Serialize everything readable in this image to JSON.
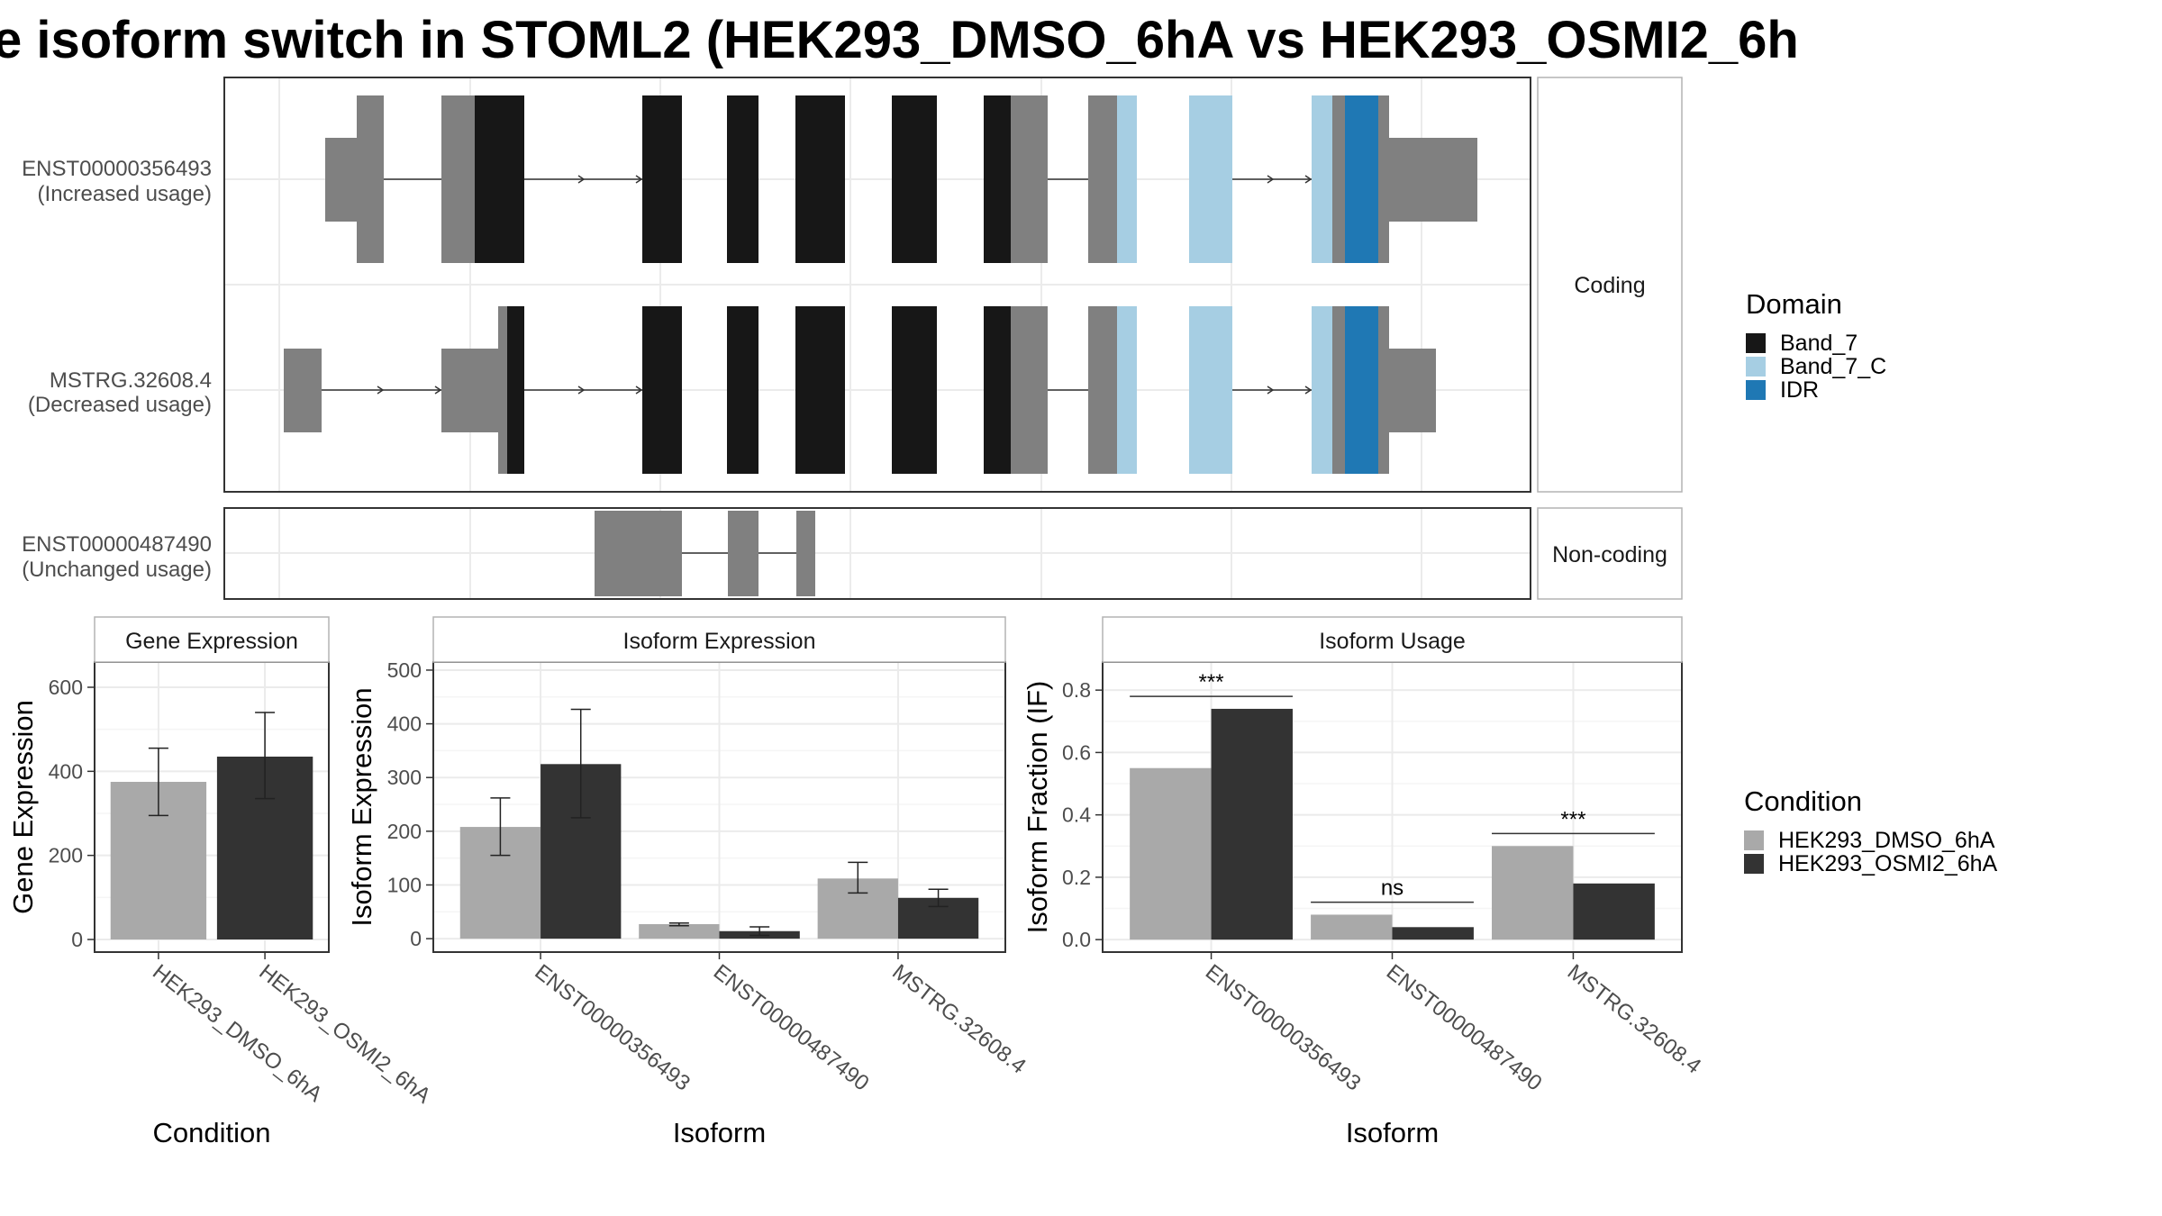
{
  "title": "e isoform switch in STOML2 (HEK293_DMSO_6hA vs HEK293_OSMI2_6h",
  "colors": {
    "utr": "#808080",
    "band7": "#171717",
    "band7c": "#a6cee3",
    "idr": "#1f78b4",
    "dmso": "#a9a9a9",
    "osmi2": "#333333",
    "grid": "#ebebeb",
    "panel_border": "#333333",
    "strip_border": "#b3b3b3"
  },
  "structure": {
    "transcripts": [
      {
        "id": "ENST00000356493",
        "usage": "(Increased usage)"
      },
      {
        "id": "MSTRG.32608.4",
        "usage": "(Decreased usage)"
      },
      {
        "id": "ENST00000487490",
        "usage": "(Unchanged usage)"
      }
    ],
    "strips": {
      "coding": "Coding",
      "noncoding": "Non-coding"
    }
  },
  "legend_domain": {
    "title": "Domain",
    "items": [
      {
        "label": "Band_7",
        "color": "#171717"
      },
      {
        "label": "Band_7_C",
        "color": "#a6cee3"
      },
      {
        "label": "IDR",
        "color": "#1f78b4"
      }
    ]
  },
  "legend_condition": {
    "title": "Condition",
    "items": [
      {
        "label": "HEK293_DMSO_6hA",
        "color": "#a9a9a9"
      },
      {
        "label": "HEK293_OSMI2_6hA",
        "color": "#333333"
      }
    ]
  },
  "chart_data": [
    {
      "type": "bar",
      "panel": "Gene Expression",
      "xlabel": "Condition",
      "ylabel": "Gene Expression",
      "categories": [
        "HEK293_DMSO_6hA",
        "HEK293_OSMI2_6hA"
      ],
      "values": [
        375,
        435
      ],
      "error_low": [
        295,
        335
      ],
      "error_high": [
        455,
        540
      ],
      "yticks": [
        0,
        200,
        400,
        600
      ],
      "ylim": [
        -30,
        660
      ],
      "grid": true
    },
    {
      "type": "bar",
      "panel": "Isoform Expression",
      "xlabel": "Isoform",
      "ylabel": "Isoform Expression",
      "categories": [
        "ENST00000356493",
        "ENST00000487490",
        "MSTRG.32608.4"
      ],
      "series": [
        {
          "name": "HEK293_DMSO_6hA",
          "values": [
            208,
            27,
            112
          ],
          "error_low": [
            155,
            24,
            85
          ],
          "error_high": [
            262,
            29,
            142
          ]
        },
        {
          "name": "HEK293_OSMI2_6hA",
          "values": [
            325,
            14,
            76
          ],
          "error_low": [
            225,
            6,
            60
          ],
          "error_high": [
            427,
            22,
            92
          ]
        }
      ],
      "yticks": [
        0,
        100,
        200,
        300,
        400,
        500
      ],
      "ylim": [
        -25,
        515
      ],
      "grid": true
    },
    {
      "type": "bar",
      "panel": "Isoform Usage",
      "xlabel": "Isoform",
      "ylabel": "Isoform Fraction (IF)",
      "categories": [
        "ENST00000356493",
        "ENST00000487490",
        "MSTRG.32608.4"
      ],
      "series": [
        {
          "name": "HEK293_DMSO_6hA",
          "values": [
            0.55,
            0.08,
            0.3
          ]
        },
        {
          "name": "HEK293_OSMI2_6hA",
          "values": [
            0.74,
            0.04,
            0.18
          ]
        }
      ],
      "significance": [
        {
          "label": "***",
          "y": 0.78
        },
        {
          "label": "ns",
          "y": 0.12
        },
        {
          "label": "***",
          "y": 0.34
        }
      ],
      "yticks": [
        0.0,
        0.2,
        0.4,
        0.6,
        0.8
      ],
      "ylim": [
        -0.04,
        0.89
      ],
      "grid": true
    }
  ]
}
